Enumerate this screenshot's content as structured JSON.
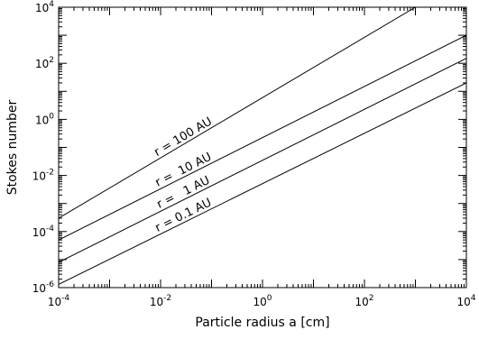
{
  "chart_data": {
    "type": "line",
    "title": "",
    "xlabel": "Particle radius a [cm]",
    "ylabel": "Stokes number",
    "xscale": "log",
    "yscale": "log",
    "xlim": [
      0.0001,
      10000
    ],
    "ylim": [
      1e-06,
      10000
    ],
    "grid": false,
    "x_ticks": [
      {
        "base": "10",
        "exp": "-4",
        "value": 0.0001
      },
      {
        "base": "10",
        "exp": "-2",
        "value": 0.01
      },
      {
        "base": "10",
        "exp": "0",
        "value": 1
      },
      {
        "base": "10",
        "exp": "2",
        "value": 100
      },
      {
        "base": "10",
        "exp": "4",
        "value": 10000
      }
    ],
    "y_ticks": [
      {
        "base": "10",
        "exp": "-6",
        "value": 1e-06
      },
      {
        "base": "10",
        "exp": "-4",
        "value": 0.0001
      },
      {
        "base": "10",
        "exp": "-2",
        "value": 0.01
      },
      {
        "base": "10",
        "exp": "0",
        "value": 1
      },
      {
        "base": "10",
        "exp": "2",
        "value": 100
      },
      {
        "base": "10",
        "exp": "4",
        "value": 10000
      }
    ],
    "series": [
      {
        "name": "r = 100 AU",
        "x": [
          0.0001,
          1000
        ],
        "y": [
          0.0003,
          10000
        ]
      },
      {
        "name": "r =  10 AU",
        "x": [
          0.0001,
          10000
        ],
        "y": [
          5e-05,
          1000
        ]
      },
      {
        "name": "r =   1 AU",
        "x": [
          0.0001,
          10000
        ],
        "y": [
          8e-06,
          150
        ]
      },
      {
        "name": "r = 0.1 AU",
        "x": [
          0.0001,
          10000
        ],
        "y": [
          1.3e-06,
          20
        ]
      }
    ],
    "label_positions_x": [
      0.03,
      0.03,
      0.03,
      0.03
    ]
  }
}
